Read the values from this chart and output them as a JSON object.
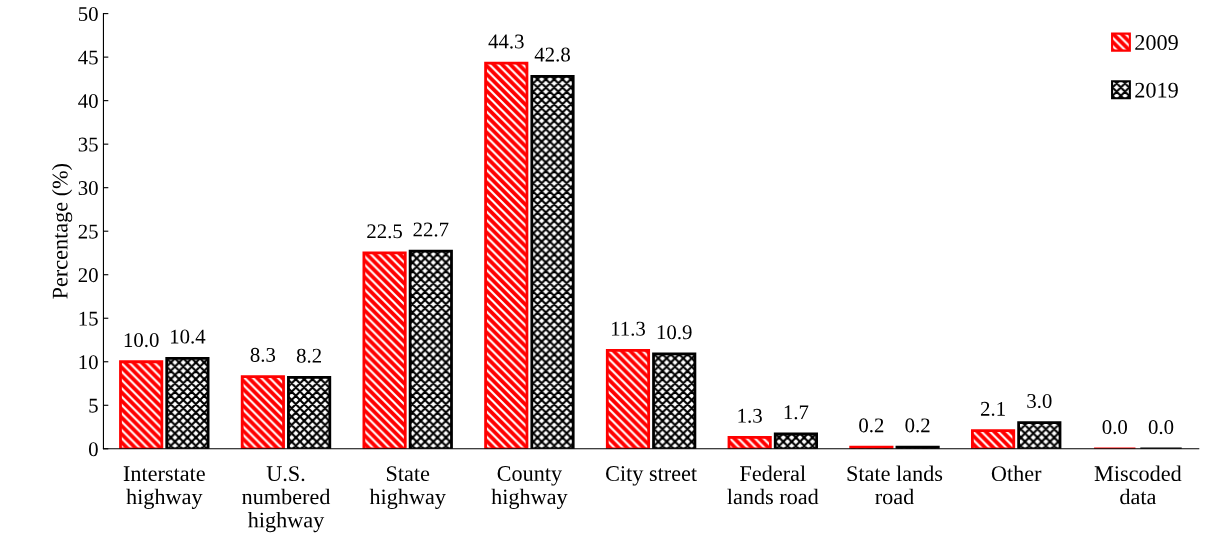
{
  "chart_data": {
    "type": "bar",
    "ylabel": "Percentage (%)",
    "categories": [
      "Interstate\nhighway",
      "U.S.\nnumbered\nhighway",
      "State\nhighway",
      "County\nhighway",
      "City street",
      "Federal\nlands road",
      "State lands\nroad",
      "Other",
      "Miscoded\ndata"
    ],
    "series": [
      {
        "name": "2009",
        "color": "#ff0000",
        "values": [
          10.0,
          8.3,
          22.5,
          44.3,
          11.3,
          1.3,
          0.2,
          2.1,
          0.0
        ],
        "value_labels": [
          "10.0",
          "8.3",
          "22.5",
          "44.3",
          "11.3",
          "1.3",
          "0.2",
          "2.1",
          "0.0"
        ]
      },
      {
        "name": "2019",
        "color": "#000000",
        "values": [
          10.4,
          8.2,
          22.7,
          42.8,
          10.9,
          1.7,
          0.2,
          3.0,
          0.0
        ],
        "value_labels": [
          "10.4",
          "8.2",
          "22.7",
          "42.8",
          "10.9",
          "1.7",
          "0.2",
          "3.0",
          "0.0"
        ]
      }
    ],
    "ylim": [
      0,
      50
    ],
    "yticks": [
      0,
      5,
      10,
      15,
      20,
      25,
      30,
      35,
      40,
      45,
      50
    ],
    "grid": false,
    "legend": "top right"
  }
}
